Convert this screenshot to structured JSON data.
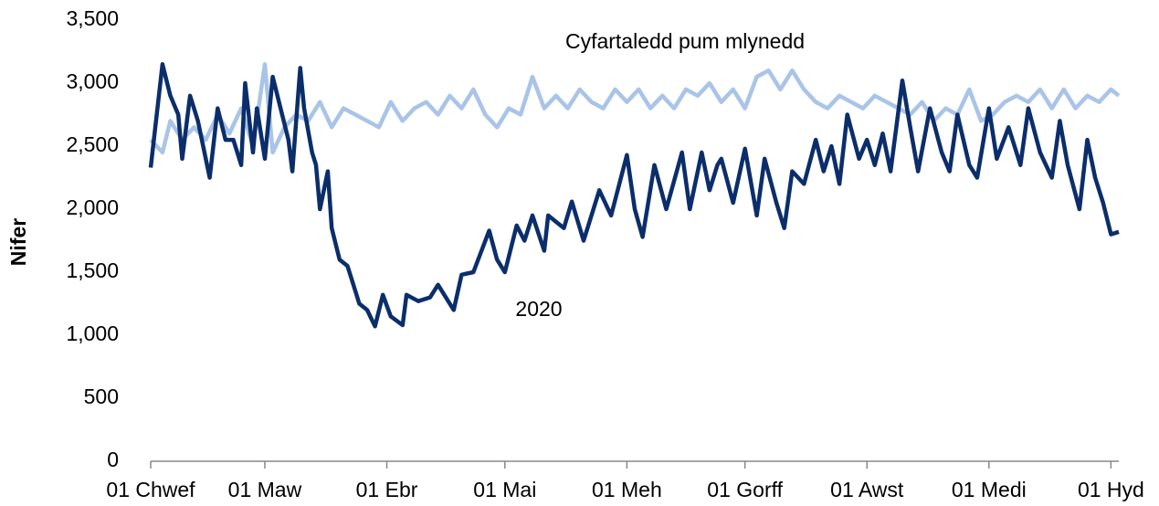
{
  "chart_data": {
    "type": "line",
    "y_label": "Nifer",
    "xlim": [
      0,
      246
    ],
    "xticks": [
      {
        "value": 0,
        "label": "01 Chwef"
      },
      {
        "value": 29,
        "label": "01 Maw"
      },
      {
        "value": 60,
        "label": "01 Ebr"
      },
      {
        "value": 90,
        "label": "01 Mai"
      },
      {
        "value": 121,
        "label": "01 Meh"
      },
      {
        "value": 151,
        "label": "01 Gorff"
      },
      {
        "value": 182,
        "label": "01 Awst"
      },
      {
        "value": 213,
        "label": "01 Medi"
      },
      {
        "value": 244,
        "label": "01 Hyd"
      }
    ],
    "ylim": [
      0,
      3500
    ],
    "yticks": [
      0,
      500,
      {
        "value": 1000,
        "label": "1,000"
      },
      {
        "value": 1500,
        "label": "1,500"
      },
      {
        "value": 2000,
        "label": "2,000"
      },
      {
        "value": 2500,
        "label": "2,500"
      },
      {
        "value": 3000,
        "label": "3,000"
      },
      {
        "value": 3500,
        "label": "3,500"
      }
    ],
    "grid": false,
    "series": [
      {
        "name": "Cyfartaledd pum mlynedd",
        "color": "#a9c4e8",
        "x": [
          0,
          3,
          5,
          8,
          11,
          14,
          17,
          20,
          23,
          26,
          29,
          31,
          34,
          37,
          40,
          43,
          46,
          49,
          52,
          55,
          58,
          61,
          64,
          67,
          70,
          73,
          76,
          79,
          82,
          85,
          88,
          91,
          94,
          97,
          100,
          103,
          106,
          109,
          112,
          115,
          118,
          121,
          124,
          127,
          130,
          133,
          136,
          139,
          142,
          145,
          148,
          151,
          154,
          157,
          160,
          163,
          166,
          169,
          172,
          175,
          178,
          181,
          184,
          187,
          190,
          193,
          196,
          199,
          202,
          205,
          208,
          211,
          214,
          217,
          220,
          223,
          226,
          229,
          232,
          235,
          238,
          241,
          244,
          246
        ],
        "values": [
          2550,
          2450,
          2700,
          2550,
          2650,
          2550,
          2750,
          2600,
          2800,
          2500,
          3150,
          2450,
          2650,
          2750,
          2700,
          2850,
          2650,
          2800,
          2750,
          2700,
          2650,
          2850,
          2700,
          2800,
          2850,
          2750,
          2900,
          2800,
          2950,
          2750,
          2650,
          2800,
          2750,
          3050,
          2800,
          2900,
          2800,
          2950,
          2850,
          2800,
          2950,
          2850,
          2950,
          2800,
          2900,
          2800,
          2950,
          2900,
          3000,
          2850,
          2950,
          2800,
          3050,
          3100,
          2950,
          3100,
          2950,
          2850,
          2800,
          2900,
          2850,
          2800,
          2900,
          2850,
          2800,
          2750,
          2850,
          2700,
          2800,
          2750,
          2950,
          2700,
          2750,
          2850,
          2900,
          2850,
          2950,
          2800,
          2950,
          2800,
          2900,
          2850,
          2950,
          2900
        ]
      },
      {
        "name": "2020",
        "color": "#0b2e6b",
        "x": [
          0,
          3,
          5,
          7,
          8,
          10,
          12,
          15,
          17,
          19,
          21,
          23,
          24,
          26,
          27,
          29,
          31,
          33,
          35,
          36,
          38,
          39,
          41,
          42,
          43,
          45,
          46,
          48,
          50,
          51,
          53,
          55,
          57,
          59,
          61,
          64,
          65,
          68,
          71,
          73,
          77,
          79,
          82,
          86,
          88,
          90,
          93,
          95,
          97,
          100,
          101,
          105,
          107,
          110,
          114,
          117,
          121,
          123,
          125,
          128,
          131,
          135,
          137,
          140,
          142,
          144,
          145,
          148,
          151,
          154,
          156,
          159,
          161,
          163,
          166,
          169,
          171,
          173,
          175,
          177,
          180,
          182,
          184,
          186,
          188,
          191,
          193,
          195,
          198,
          201,
          203,
          205,
          208,
          210,
          213,
          215,
          218,
          221,
          223,
          226,
          229,
          231,
          233,
          236,
          238,
          240,
          242,
          244,
          246
        ],
        "values": [
          2330,
          3150,
          2900,
          2750,
          2400,
          2900,
          2700,
          2250,
          2800,
          2550,
          2550,
          2350,
          3000,
          2450,
          2800,
          2400,
          3050,
          2800,
          2550,
          2300,
          3120,
          2800,
          2450,
          2350,
          2000,
          2300,
          1850,
          1600,
          1550,
          1450,
          1250,
          1200,
          1070,
          1320,
          1150,
          1080,
          1320,
          1270,
          1300,
          1400,
          1200,
          1480,
          1500,
          1830,
          1600,
          1500,
          1870,
          1750,
          1950,
          1670,
          1950,
          1850,
          2060,
          1750,
          2150,
          1950,
          2430,
          2000,
          1780,
          2350,
          2000,
          2450,
          2000,
          2450,
          2150,
          2350,
          2400,
          2050,
          2480,
          1950,
          2400,
          2050,
          1850,
          2300,
          2200,
          2550,
          2300,
          2500,
          2200,
          2750,
          2400,
          2550,
          2350,
          2600,
          2300,
          3020,
          2650,
          2300,
          2800,
          2450,
          2300,
          2750,
          2350,
          2250,
          2800,
          2400,
          2650,
          2350,
          2800,
          2450,
          2250,
          2700,
          2350,
          2000,
          2550,
          2250,
          2050,
          1800,
          1820
        ]
      }
    ]
  }
}
